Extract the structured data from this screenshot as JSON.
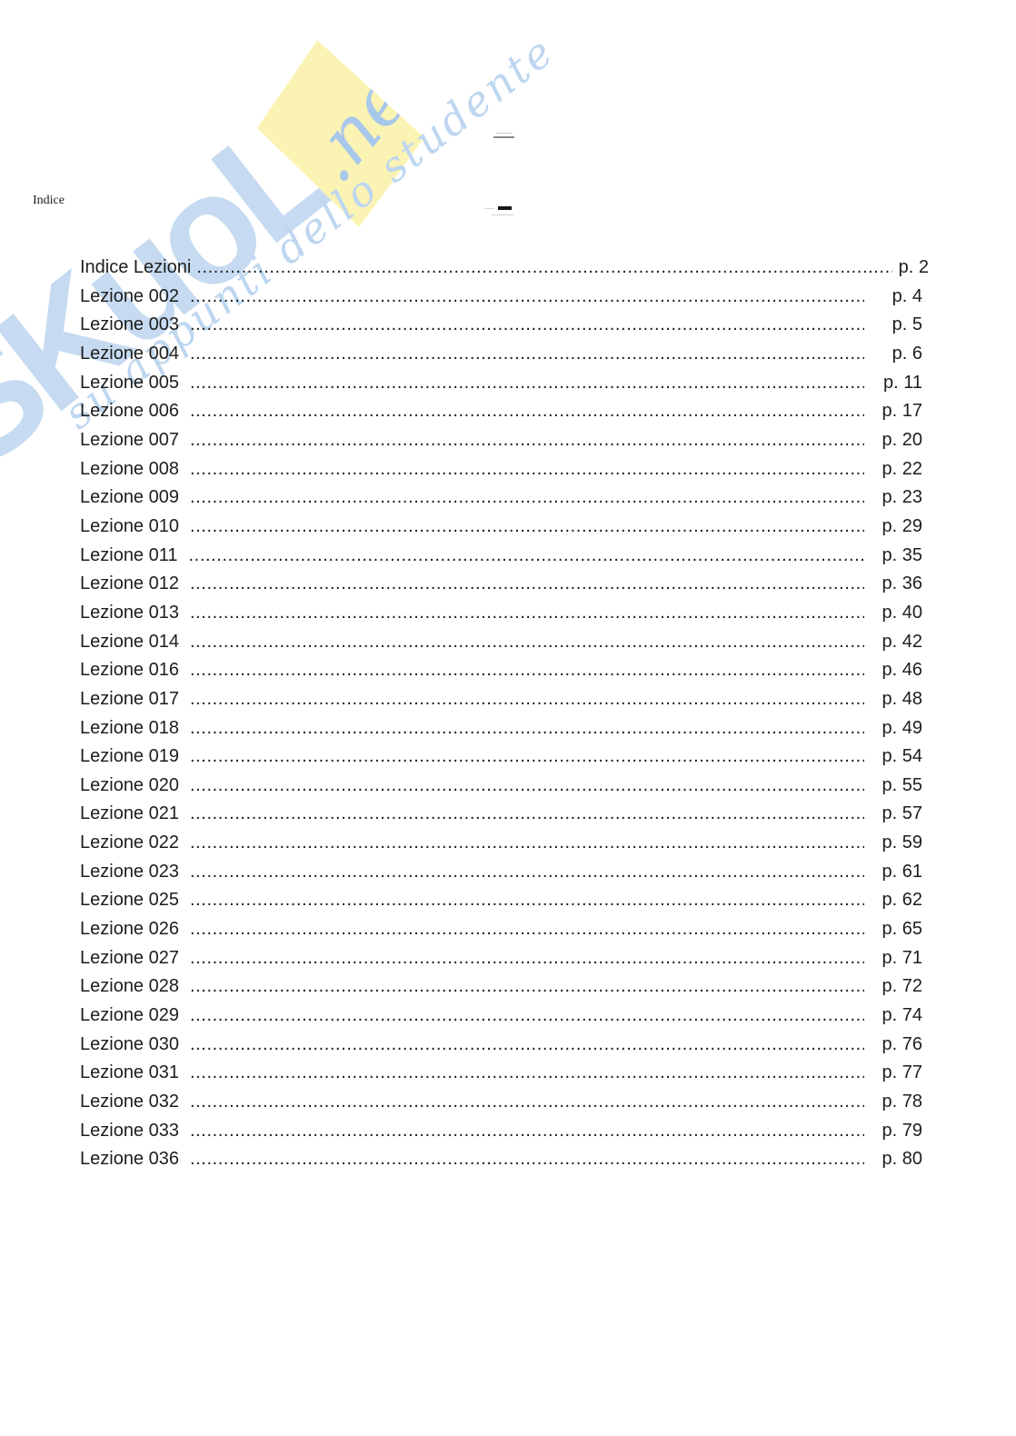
{
  "document": {
    "header_label": "Indice",
    "watermark": {
      "brand": "SKuoLa",
      "flag_text": ".net",
      "tagline": "su appunti dello studente",
      "colors": {
        "letters": "#c6dbf1",
        "flag": "#faf3b3",
        "flag_text": "#a8c8eb",
        "tagline": "#bed6f0"
      }
    },
    "toc": {
      "leader_char": ".",
      "entries": [
        {
          "label": "Indice Lezioni",
          "page": "p. 2"
        },
        {
          "label": "Lezione 002",
          "page": "p. 4"
        },
        {
          "label": "Lezione 003",
          "page": "p. 5"
        },
        {
          "label": "Lezione 004",
          "page": "p. 6"
        },
        {
          "label": "Lezione 005",
          "page": "p. 11"
        },
        {
          "label": "Lezione 006",
          "page": "p. 17"
        },
        {
          "label": "Lezione 007",
          "page": "p. 20"
        },
        {
          "label": "Lezione 008",
          "page": "p. 22"
        },
        {
          "label": "Lezione 009",
          "page": "p. 23"
        },
        {
          "label": "Lezione 010",
          "page": "p. 29"
        },
        {
          "label": "Lezione 011",
          "page": "p. 35"
        },
        {
          "label": "Lezione 012",
          "page": "p. 36"
        },
        {
          "label": "Lezione 013",
          "page": "p. 40"
        },
        {
          "label": "Lezione 014",
          "page": "p. 42"
        },
        {
          "label": "Lezione 016",
          "page": "p. 46"
        },
        {
          "label": "Lezione 017",
          "page": "p. 48"
        },
        {
          "label": "Lezione 018",
          "page": "p. 49"
        },
        {
          "label": "Lezione 019",
          "page": "p. 54"
        },
        {
          "label": "Lezione 020",
          "page": "p. 55"
        },
        {
          "label": "Lezione 021",
          "page": "p. 57"
        },
        {
          "label": "Lezione 022",
          "page": "p. 59"
        },
        {
          "label": "Lezione 023",
          "page": "p. 61"
        },
        {
          "label": "Lezione 025",
          "page": "p. 62"
        },
        {
          "label": "Lezione 026",
          "page": "p. 65"
        },
        {
          "label": "Lezione 027",
          "page": "p. 71"
        },
        {
          "label": "Lezione 028",
          "page": "p. 72"
        },
        {
          "label": "Lezione 029",
          "page": "p. 74"
        },
        {
          "label": "Lezione 030",
          "page": "p. 76"
        },
        {
          "label": "Lezione 031",
          "page": "p. 77"
        },
        {
          "label": "Lezione 032",
          "page": "p. 78"
        },
        {
          "label": "Lezione 033",
          "page": "p. 79"
        },
        {
          "label": "Lezione 036",
          "page": "p. 80"
        }
      ]
    }
  }
}
